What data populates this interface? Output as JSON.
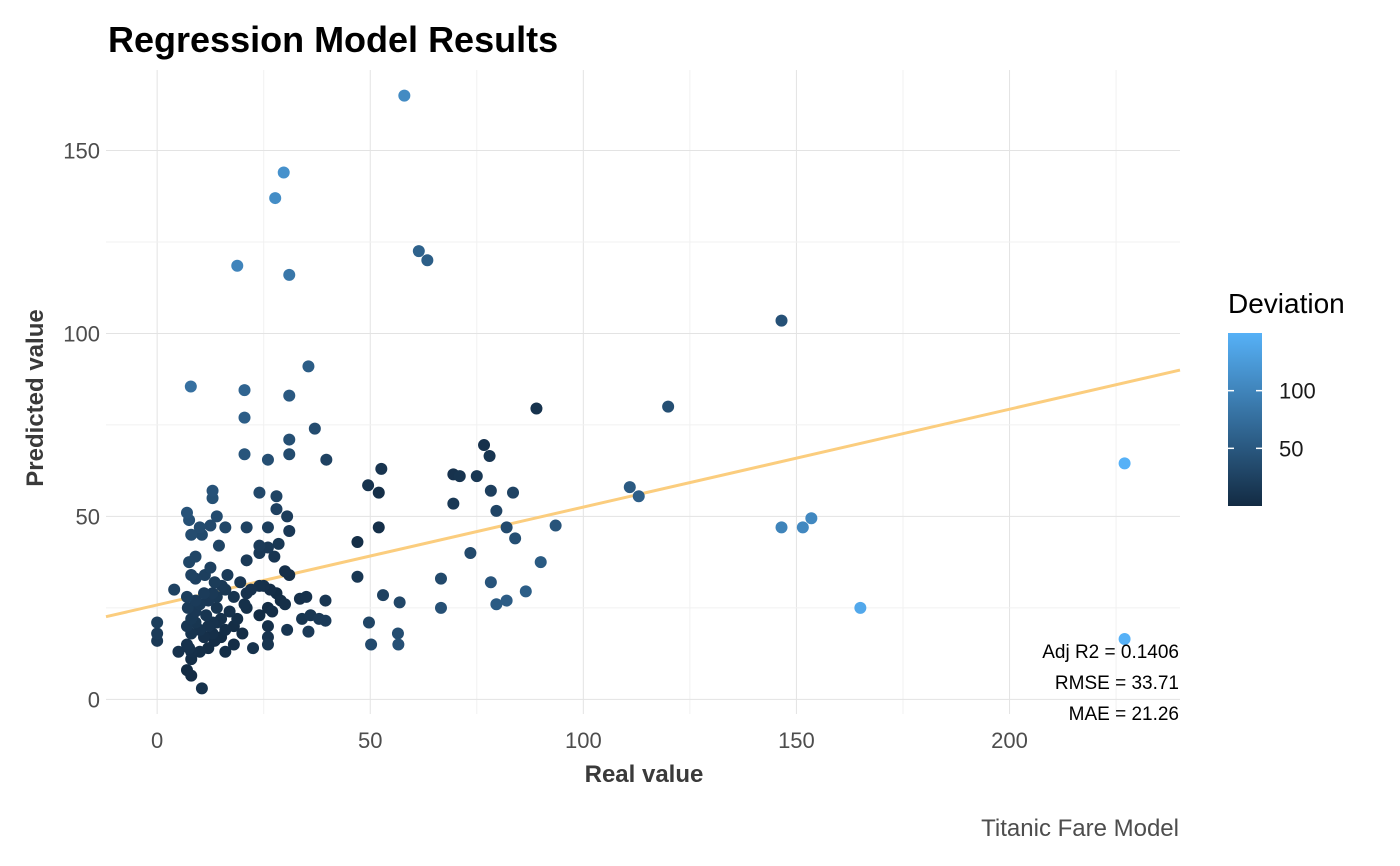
{
  "chart_data": {
    "type": "scatter",
    "title": "Regression Model Results",
    "xlabel": "Real value",
    "ylabel": "Predicted value",
    "caption": "Titanic Fare Model",
    "xlim": [
      -12,
      240
    ],
    "ylim": [
      -4,
      172
    ],
    "x_ticks": [
      0,
      50,
      100,
      150,
      200
    ],
    "y_ticks": [
      0,
      50,
      100,
      150
    ],
    "grid": true,
    "legend": {
      "title": "Deviation",
      "position": "right",
      "range": [
        0,
        150
      ],
      "ticks": [
        50,
        100
      ],
      "color_low": "#132B43",
      "color_high": "#56B1F7"
    },
    "fit_line": {
      "intercept": 25.8,
      "slope": 0.2675,
      "color": "#fbcd7e"
    },
    "annotations": [
      "Adj R2 =  0.1406",
      "RMSE = 33.71",
      "MAE = 21.26"
    ],
    "points": [
      [
        58,
        165
      ],
      [
        29.7,
        144
      ],
      [
        27.7,
        137
      ],
      [
        18.8,
        118.5
      ],
      [
        31,
        116
      ],
      [
        61.4,
        122.5
      ],
      [
        63.4,
        120
      ],
      [
        146.5,
        103.5
      ],
      [
        7.9,
        85.5
      ],
      [
        20.5,
        84.5
      ],
      [
        35.5,
        91
      ],
      [
        31,
        83
      ],
      [
        20.5,
        77
      ],
      [
        37,
        74
      ],
      [
        31,
        71
      ],
      [
        89,
        79.5
      ],
      [
        119.9,
        80
      ],
      [
        76.7,
        69.5
      ],
      [
        78,
        66.5
      ],
      [
        20.5,
        67
      ],
      [
        26,
        65.5
      ],
      [
        31,
        67
      ],
      [
        39.7,
        65.5
      ],
      [
        52.6,
        63
      ],
      [
        69.5,
        61.5
      ],
      [
        71,
        61
      ],
      [
        75,
        61
      ],
      [
        49.5,
        58.5
      ],
      [
        52,
        56.5
      ],
      [
        78.3,
        57
      ],
      [
        83.5,
        56.5
      ],
      [
        110.9,
        58
      ],
      [
        113,
        55.5
      ],
      [
        24,
        56.5
      ],
      [
        28,
        55.5
      ],
      [
        13,
        57
      ],
      [
        13,
        55
      ],
      [
        7,
        51
      ],
      [
        7.5,
        49
      ],
      [
        14,
        50
      ],
      [
        10,
        47
      ],
      [
        12.5,
        47.5
      ],
      [
        16,
        47
      ],
      [
        21,
        47
      ],
      [
        26,
        47
      ],
      [
        28,
        52
      ],
      [
        30.5,
        50
      ],
      [
        31,
        46
      ],
      [
        52,
        47
      ],
      [
        69.5,
        53.5
      ],
      [
        79.6,
        51.5
      ],
      [
        82,
        47
      ],
      [
        84,
        44
      ],
      [
        93.5,
        47.5
      ],
      [
        146.5,
        47
      ],
      [
        151.5,
        47
      ],
      [
        153.5,
        49.5
      ],
      [
        8,
        45
      ],
      [
        10.5,
        45
      ],
      [
        14.5,
        42
      ],
      [
        24,
        42
      ],
      [
        26,
        41.5
      ],
      [
        28.5,
        42.5
      ],
      [
        47,
        43
      ],
      [
        7.5,
        37.5
      ],
      [
        9,
        39
      ],
      [
        12.5,
        36
      ],
      [
        21,
        38
      ],
      [
        24,
        40
      ],
      [
        27.5,
        39
      ],
      [
        73.5,
        40
      ],
      [
        90,
        37.5
      ],
      [
        8,
        34
      ],
      [
        9,
        33
      ],
      [
        11.2,
        34
      ],
      [
        13.5,
        32
      ],
      [
        16.5,
        34
      ],
      [
        19.5,
        32
      ],
      [
        30,
        35
      ],
      [
        31,
        34
      ],
      [
        47,
        33.5
      ],
      [
        66.6,
        33
      ],
      [
        78.3,
        32
      ],
      [
        4,
        30
      ],
      [
        7,
        28
      ],
      [
        9,
        27
      ],
      [
        11,
        29
      ],
      [
        12,
        27
      ],
      [
        13,
        29
      ],
      [
        14,
        28
      ],
      [
        15.2,
        31
      ],
      [
        16,
        30
      ],
      [
        18,
        28
      ],
      [
        21,
        29
      ],
      [
        22,
        30
      ],
      [
        24,
        31
      ],
      [
        25,
        31
      ],
      [
        26.5,
        30
      ],
      [
        28,
        29
      ],
      [
        29,
        27
      ],
      [
        33.5,
        27.5
      ],
      [
        35,
        28
      ],
      [
        39.5,
        27
      ],
      [
        53,
        28.5
      ],
      [
        56.9,
        26.5
      ],
      [
        79.6,
        26
      ],
      [
        82,
        27
      ],
      [
        86.5,
        29.5
      ],
      [
        7.2,
        25
      ],
      [
        8,
        22
      ],
      [
        9,
        24
      ],
      [
        10,
        26
      ],
      [
        11.5,
        23
      ],
      [
        13,
        21
      ],
      [
        14,
        25
      ],
      [
        15,
        22
      ],
      [
        17,
        24
      ],
      [
        18.8,
        22
      ],
      [
        20.5,
        26
      ],
      [
        21,
        25
      ],
      [
        24,
        23
      ],
      [
        26,
        25
      ],
      [
        27,
        24
      ],
      [
        30,
        26
      ],
      [
        34,
        22
      ],
      [
        36,
        23
      ],
      [
        38,
        22
      ],
      [
        39.5,
        21.5
      ],
      [
        66.6,
        25
      ],
      [
        7,
        20
      ],
      [
        8,
        18
      ],
      [
        9,
        21
      ],
      [
        10,
        19
      ],
      [
        11,
        17
      ],
      [
        12,
        20
      ],
      [
        13,
        18
      ],
      [
        14,
        21
      ],
      [
        15,
        17
      ],
      [
        16,
        19
      ],
      [
        18,
        20
      ],
      [
        20,
        18
      ],
      [
        26,
        20
      ],
      [
        26,
        17
      ],
      [
        30.5,
        19
      ],
      [
        35.5,
        18.5
      ],
      [
        49.7,
        21
      ],
      [
        56.5,
        18
      ],
      [
        0,
        21
      ],
      [
        0,
        18
      ],
      [
        0,
        16
      ],
      [
        5,
        13
      ],
      [
        7,
        15
      ],
      [
        7.5,
        14
      ],
      [
        8,
        11
      ],
      [
        8,
        13
      ],
      [
        10,
        13
      ],
      [
        12,
        14
      ],
      [
        13.5,
        16
      ],
      [
        16,
        13
      ],
      [
        18,
        15
      ],
      [
        22.5,
        14
      ],
      [
        26,
        15
      ],
      [
        50.2,
        15
      ],
      [
        56.6,
        15
      ],
      [
        7,
        8
      ],
      [
        8,
        6.5
      ],
      [
        10.5,
        3
      ],
      [
        165,
        25
      ],
      [
        227,
        64.5
      ],
      [
        227,
        16.5
      ]
    ]
  }
}
